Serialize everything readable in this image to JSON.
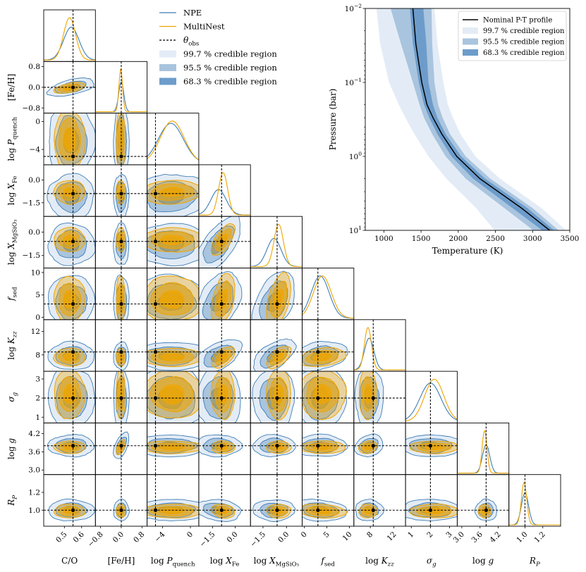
{
  "chart_data": [
    {
      "type": "corner",
      "series": [
        {
          "name": "NPE",
          "color": "#3f7db5"
        },
        {
          "name": "MultiNest",
          "color": "#f0a500"
        }
      ],
      "observed_label": "θ_obs",
      "credible_regions": [
        {
          "label": "99.7 % credible region",
          "color": "#e3ecf6"
        },
        {
          "label": "95.5 % credible region",
          "color": "#a9c4de"
        },
        {
          "label": "68.3 % credible region",
          "color": "#6d9ccb"
        }
      ],
      "parameters": [
        {
          "label": "C/O",
          "range": [
            0.38,
            0.68
          ],
          "ticks": [
            "0.5",
            "0.6"
          ],
          "tick_values": [
            0.5,
            0.6
          ],
          "truth": 0.55,
          "npe_mean": 0.54,
          "npe_sd": 0.045,
          "mn_mean": 0.53,
          "mn_sd": 0.035
        },
        {
          "label": "[Fe/H]",
          "range": [
            -1.0,
            1.0
          ],
          "ticks": [
            "−0.8",
            "0.0",
            "0.8"
          ],
          "tick_values": [
            -0.8,
            0.0,
            0.8
          ],
          "truth": 0.0,
          "npe_mean": 0.0,
          "npe_sd": 0.1,
          "mn_mean": -0.02,
          "mn_sd": 0.07
        },
        {
          "label": "log P_quench",
          "range": [
            -6.2,
            1.2
          ],
          "ticks": [
            "−4",
            "0"
          ],
          "tick_values": [
            -4,
            0
          ],
          "truth": -5.0,
          "npe_mean": -2.8,
          "npe_sd": 1.8,
          "mn_mean": -2.6,
          "mn_sd": 1.7
        },
        {
          "label": "log X_Fe",
          "range": [
            -2.4,
            1.0
          ],
          "ticks": [
            "−1.5",
            "0.0"
          ],
          "tick_values": [
            -1.5,
            0.0
          ],
          "truth": -0.9,
          "npe_mean": -1.1,
          "npe_sd": 0.5,
          "mn_mean": -0.8,
          "mn_sd": 0.3
        },
        {
          "label": "log X_MgSiO3",
          "range": [
            -2.3,
            1.0
          ],
          "ticks": [
            "−1.5",
            "0.0"
          ],
          "tick_values": [
            -1.5,
            0.0
          ],
          "truth": -0.6,
          "npe_mean": -0.8,
          "npe_sd": 0.45,
          "mn_mean": -0.5,
          "mn_sd": 0.3
        },
        {
          "label": "f_sed",
          "range": [
            -0.5,
            11.0
          ],
          "ticks": [
            "0",
            "5",
            "10"
          ],
          "tick_values": [
            0,
            5,
            10
          ],
          "truth": 3.0,
          "npe_mean": 3.5,
          "npe_sd": 2.0,
          "mn_mean": 4.0,
          "mn_sd": 2.0
        },
        {
          "label": "log K_zz",
          "range": [
            5.2,
            14.0
          ],
          "ticks": [
            "8",
            "12"
          ],
          "tick_values": [
            8,
            12
          ],
          "truth": 8.5,
          "npe_mean": 7.8,
          "npe_sd": 0.8,
          "mn_mean": 7.6,
          "mn_sd": 0.6
        },
        {
          "label": "σ_g",
          "range": [
            0.7,
            3.4
          ],
          "ticks": [
            "1",
            "2",
            "3"
          ],
          "tick_values": [
            1,
            2,
            3
          ],
          "truth": 2.0,
          "npe_mean": 2.0,
          "npe_sd": 0.55,
          "mn_mean": 2.2,
          "mn_sd": 0.5
        },
        {
          "label": "log g",
          "range": [
            2.85,
            4.55
          ],
          "ticks": [
            "3.0",
            "3.6",
            "4.2"
          ],
          "tick_values": [
            3.0,
            3.6,
            4.2
          ],
          "truth": 3.8,
          "npe_mean": 3.8,
          "npe_sd": 0.12,
          "mn_mean": 3.75,
          "mn_sd": 0.08
        },
        {
          "label": "R_P",
          "range": [
            0.82,
            1.4
          ],
          "ticks": [
            "1.0",
            "1.2"
          ],
          "tick_values": [
            1.0,
            1.2
          ],
          "truth": 1.0,
          "npe_mean": 1.0,
          "npe_sd": 0.04,
          "mn_mean": 0.99,
          "mn_sd": 0.03
        }
      ]
    },
    {
      "type": "area",
      "xlabel": "Temperature (K)",
      "ylabel": "Pressure (bar)",
      "xlim": [
        750,
        3500
      ],
      "ylim": [
        10,
        0.01
      ],
      "yscale": "log",
      "xticks": [
        "1000",
        "1500",
        "2000",
        "2500",
        "3000",
        "3500"
      ],
      "xtick_values": [
        1000,
        1500,
        2000,
        2500,
        3000,
        3500
      ],
      "yticks": [
        {
          "label": "10^−2",
          "base": "10",
          "exp": "−2",
          "value": 0.01
        },
        {
          "label": "10^−1",
          "base": "10",
          "exp": "−1",
          "value": 0.1
        },
        {
          "label": "10^0",
          "base": "10",
          "exp": "0",
          "value": 1
        },
        {
          "label": "10^1",
          "base": "10",
          "exp": "1",
          "value": 10
        }
      ],
      "legend_position": "top-right",
      "legend": [
        {
          "label": "Nominal P-T profile",
          "color": "#000000"
        },
        {
          "label": "99.7 % credible region",
          "color": "#e3ecf6"
        },
        {
          "label": "95.5 % credible region",
          "color": "#a9c4de"
        },
        {
          "label": "68.3 % credible region",
          "color": "#6d9ccb"
        }
      ],
      "pressure": [
        0.01,
        0.03,
        0.1,
        0.2,
        0.3,
        0.5,
        1,
        2,
        5,
        10
      ],
      "nominal_T": [
        1390,
        1430,
        1510,
        1580,
        1660,
        1780,
        1980,
        2290,
        2850,
        3230
      ],
      "band_68": {
        "low": [
          1350,
          1390,
          1470,
          1540,
          1610,
          1720,
          1910,
          2200,
          2730,
          3130
        ],
        "high": [
          1530,
          1570,
          1600,
          1660,
          1720,
          1830,
          2040,
          2360,
          2930,
          3290
        ]
      },
      "band_95": {
        "low": [
          1090,
          1230,
          1390,
          1480,
          1540,
          1650,
          1830,
          2100,
          2620,
          3010
        ],
        "high": [
          1640,
          1650,
          1680,
          1730,
          1790,
          1890,
          2100,
          2430,
          3000,
          3350
        ]
      },
      "band_99": {
        "low": [
          900,
          950,
          1070,
          1200,
          1290,
          1410,
          1600,
          1840,
          2240,
          2490
        ],
        "high": [
          1680,
          1720,
          1800,
          1860,
          1930,
          2030,
          2230,
          2560,
          3120,
          3450
        ]
      }
    }
  ]
}
